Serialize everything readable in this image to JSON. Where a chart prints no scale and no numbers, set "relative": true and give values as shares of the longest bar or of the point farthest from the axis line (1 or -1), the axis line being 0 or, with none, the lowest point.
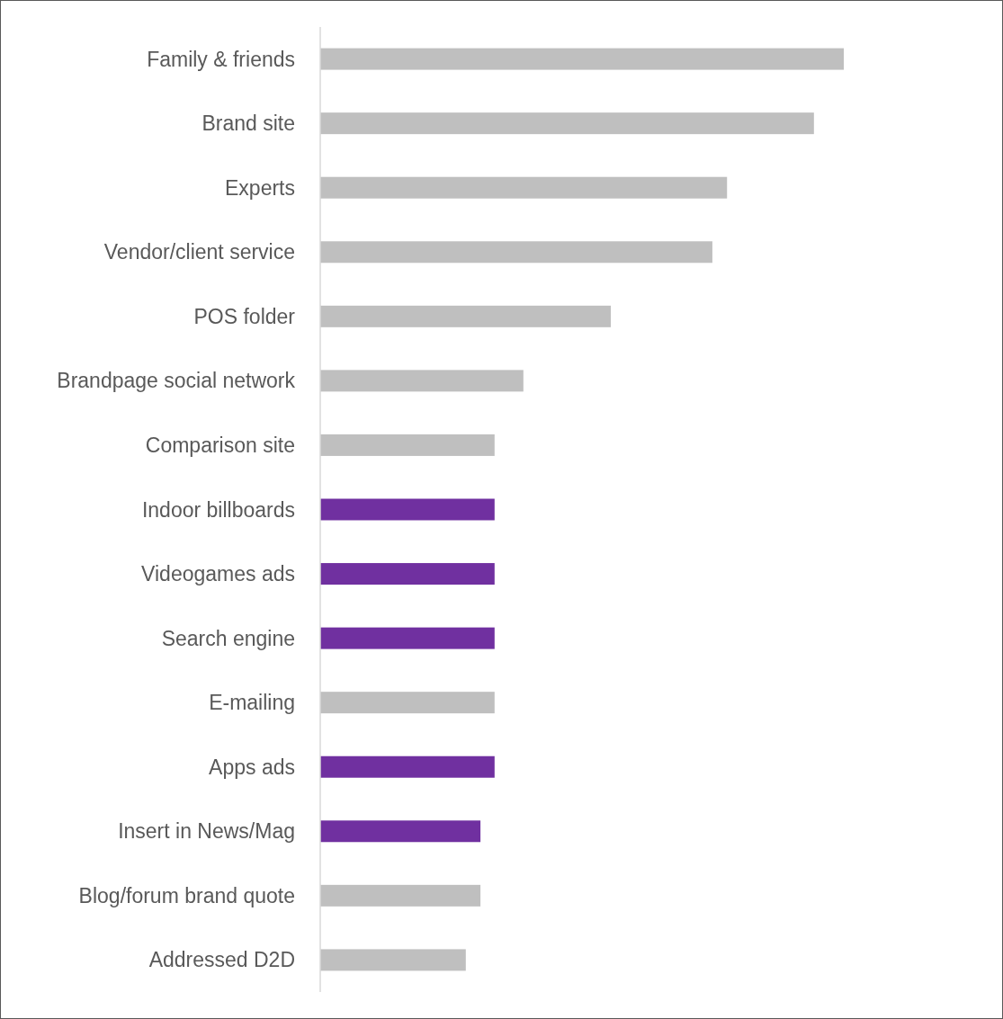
{
  "chart_data": {
    "type": "bar",
    "orientation": "horizontal",
    "relative": true,
    "categories": [
      "Family & friends",
      "Brand site",
      "Experts",
      "Vendor/client service",
      "POS folder",
      "Brandpage social network",
      "Comparison site",
      "Indoor billboards",
      "Videogames ads",
      "Search engine",
      "E-mailing",
      "Apps ads",
      "Insert in News/Mag",
      "Blog/forum brand quote",
      "Addressed D2D"
    ],
    "values": [
      1,
      0.943,
      0.777,
      0.749,
      0.555,
      0.388,
      0.333,
      0.333,
      0.333,
      0.333,
      0.333,
      0.333,
      0.306,
      0.306,
      0.278
    ],
    "colors": [
      "#bfbfbf",
      "#bfbfbf",
      "#bfbfbf",
      "#bfbfbf",
      "#bfbfbf",
      "#bfbfbf",
      "#bfbfbf",
      "#7030a0",
      "#7030a0",
      "#7030a0",
      "#bfbfbf",
      "#7030a0",
      "#7030a0",
      "#bfbfbf",
      "#bfbfbf"
    ]
  }
}
